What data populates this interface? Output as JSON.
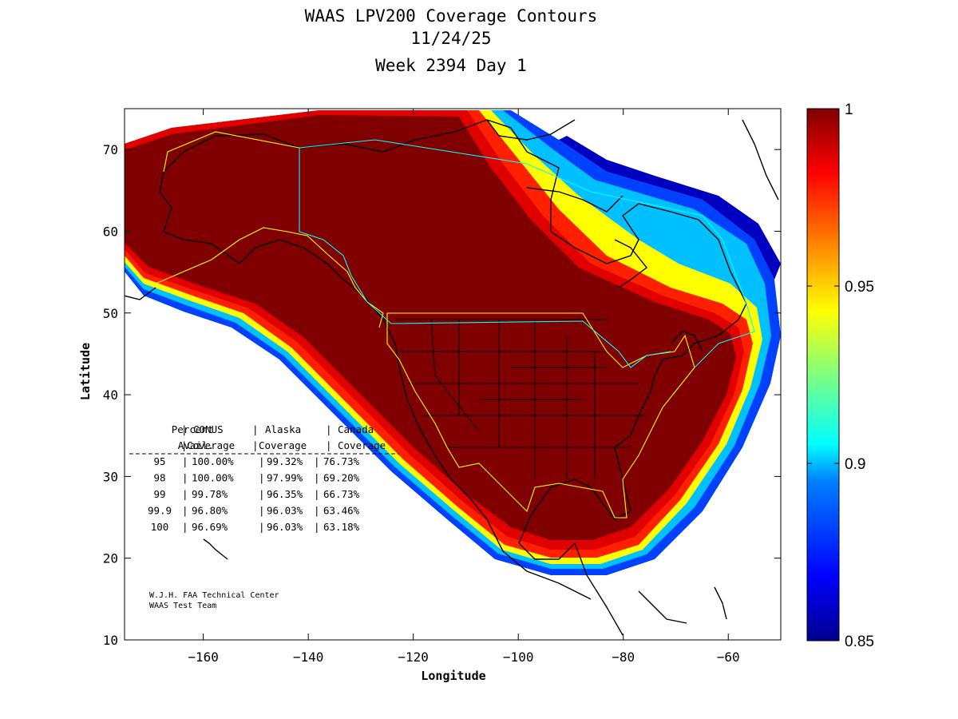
{
  "title": {
    "line1": "WAAS LPV200 Coverage Contours",
    "line2": "11/24/25",
    "line3": "Week 2394 Day 1"
  },
  "chart_data": {
    "type": "heatmap",
    "xlabel": "Longitude",
    "ylabel": "Latitude",
    "xlim": [
      -175,
      -50
    ],
    "ylim": [
      10,
      75
    ],
    "x_ticks": [
      -160,
      -140,
      -120,
      -100,
      -80,
      -60
    ],
    "y_ticks": [
      10,
      20,
      30,
      40,
      50,
      60,
      70
    ],
    "colorbar": {
      "range": [
        0.85,
        1
      ],
      "ticks": [
        0.85,
        0.9,
        0.95,
        1
      ],
      "colors": [
        "#00008f",
        "#0000ff",
        "#0080ff",
        "#00ffff",
        "#80ff80",
        "#ffff00",
        "#ff8000",
        "#ff0000",
        "#800000"
      ]
    },
    "coverage_table": {
      "header1": [
        "Percent",
        "CONUS",
        "Alaska",
        "Canada"
      ],
      "header2": [
        "Avail.",
        "Coverage",
        "Coverage",
        "Coverage"
      ],
      "rows": [
        {
          "avail": "95",
          "conus": "100.00%",
          "alaska": "99.32%",
          "canada": "76.73%"
        },
        {
          "avail": "98",
          "conus": "100.00%",
          "alaska": "97.99%",
          "canada": "69.20%"
        },
        {
          "avail": "99",
          "conus": "99.78%",
          "alaska": "96.35%",
          "canada": "66.73%"
        },
        {
          "avail": "99.9",
          "conus": "96.80%",
          "alaska": "96.03%",
          "canada": "63.46%"
        },
        {
          "avail": "100",
          "conus": "96.69%",
          "alaska": "96.03%",
          "canada": "63.18%"
        }
      ]
    }
  },
  "credit": {
    "line1": "W.J.H. FAA Technical Center",
    "line2": "WAAS Test Team"
  }
}
